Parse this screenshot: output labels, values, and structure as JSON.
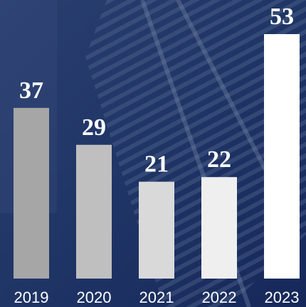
{
  "chart_data": {
    "type": "bar",
    "categories": [
      "2019",
      "2020",
      "2021",
      "2022",
      "2023"
    ],
    "values": [
      37,
      29,
      21,
      22,
      53
    ],
    "colors": [
      "#a6a6a6",
      "#bfbfbf",
      "#d9d9d9",
      "#efefef",
      "#ffffff"
    ],
    "ylim": [
      0,
      53
    ]
  }
}
